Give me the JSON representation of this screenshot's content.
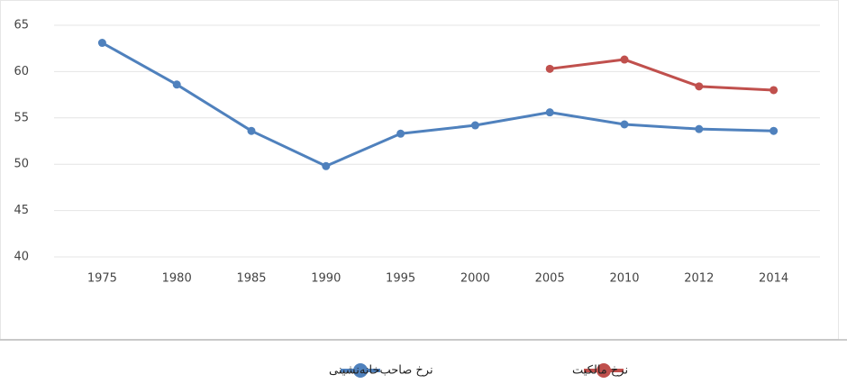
{
  "chart_data": {
    "type": "line",
    "categories": [
      "1975",
      "1980",
      "1985",
      "1990",
      "1995",
      "2000",
      "2005",
      "2010",
      "2012",
      "2014"
    ],
    "series": [
      {
        "name": "نرخ صاحب‌خانه‌نشینی",
        "color": "#4f81bd",
        "values": [
          63.1,
          58.6,
          53.6,
          49.8,
          53.3,
          54.2,
          55.6,
          54.3,
          53.8,
          53.6
        ]
      },
      {
        "name": "نرخ مالکیت",
        "color": "#c0504d",
        "values": [
          null,
          null,
          null,
          null,
          null,
          null,
          60.3,
          61.3,
          58.4,
          58.0
        ]
      }
    ],
    "ylim": [
      40,
      65
    ],
    "yticks": [
      40,
      45,
      50,
      55,
      60,
      65
    ],
    "grid": true
  }
}
